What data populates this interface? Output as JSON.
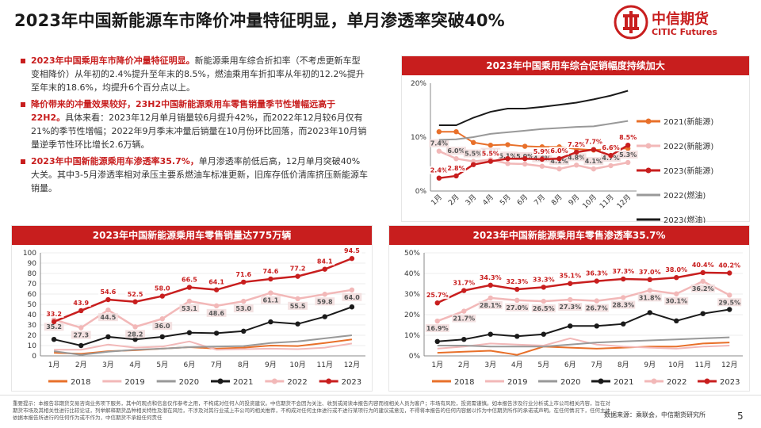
{
  "title": "2023年中国新能源车市降价冲量特征明显，单月渗透率突破40%",
  "logo": {
    "cn": "中信期货",
    "en": "CITIC Futures"
  },
  "bullets": [
    {
      "hl": "2023年中国乘用车市降价冲量特征明显。",
      "text": "新能源乘用车综合折扣率（不考虑更新车型变相降价）从年初的2.4%提升至年末的8.5%，燃油乘用车折扣率从年初的12.2%提升至年末的18.6%，均提升6个百分点以上。"
    },
    {
      "hl": "降价带来的冲量效果较好，23H2中国新能源乘用车零售销量季节性增幅远高于22H2。",
      "text": "具体来看：2023年12月单月销量较6月提升42%，而2022年12月较6月仅有21%的季节性增幅；2022年9月季末冲量后销量在10月份环比回落，而2023年10月销量逆季节性环比增长2.6万辆。"
    },
    {
      "hl": "2023年中国新能源乘用车渗透率35.7%，",
      "text": "单月渗透率前低后高，12月单月突破40%大关。其中3-5月渗透率相对承压主要系燃油车标准更新，旧库存低价清库挤压新能源车销量。"
    }
  ],
  "footer": {
    "disclaimer": "重要提示：本报告非期货交易咨询业务项下服务，其中的观点和信息仅作参考之用，不构成对任何人的投资建议。中信期货不会因为关注、收到或阅读本报告内容而视相关人员为客户；市场有风险，投资需谨慎。如本报告涉及行业分析或上市公司相关内容，旨在对期货市场及其相关性进行比较论证，列举解释期货品种相关特性及潜在风险，不涉及对其行业或上市公司的相关推荐，不构成对任何主体进行或不进行某项行为的建议或意见，不得将本报告的任何内容据以作为中信期货所作的承诺或声明。在任何情况下，任何主体依据本报告所进行的任何作为或不作为，中信期货不承担任何责任",
    "source": "数据来源：乘联会，中信期货研究所",
    "page": "5"
  },
  "colors": {
    "red": "#c81e1e",
    "orange": "#e8702a",
    "pink": "#f2b8b8",
    "gray": "#999999",
    "black": "#1a1a1a",
    "navy": "#3b5a8c"
  },
  "chart_data": [
    {
      "type": "line",
      "title": "2023年中国乘用车综合促销幅度持续加大",
      "categories": [
        "1月",
        "2月",
        "3月",
        "4月",
        "5月",
        "6月",
        "7月",
        "8月",
        "9月",
        "10月",
        "11月",
        "12月"
      ],
      "ylim": [
        0,
        20
      ],
      "yticks": [
        "0%",
        "10%",
        "20%"
      ],
      "series": [
        {
          "name": "2021(新能源)",
          "color": "#e8702a",
          "values": [
            11.0,
            11.0,
            9.0,
            8.5,
            8.6,
            8.3,
            8.2,
            8.2,
            7.8,
            7.6,
            7.8,
            7.9
          ]
        },
        {
          "name": "2022(新能源)",
          "color": "#f2b8b8",
          "values": [
            7.4,
            6.0,
            5.5,
            5.8,
            5.1,
            5.0,
            4.6,
            4.1,
            4.8,
            4.1,
            4.7,
            5.3
          ],
          "labels": [
            "7.4%",
            "6.0%",
            "5.5%",
            "5.8%",
            "5.1%",
            "5.0%",
            "4.6%",
            "4.1%",
            "4.8%",
            "4.1%",
            "4.7%",
            "5.3%"
          ]
        },
        {
          "name": "2023(新能源)",
          "color": "#c81e1e",
          "values": [
            2.4,
            2.8,
            4.9,
            5.5,
            6.0,
            6.0,
            5.9,
            6.0,
            7.2,
            7.7,
            6.6,
            8.5
          ],
          "labels": [
            "2.4%",
            "2.8%",
            "",
            "5.5%",
            "",
            "",
            "5.9%",
            "6.0%",
            "7.2%",
            "7.7%",
            "6.6%",
            "8.5%"
          ]
        },
        {
          "name": "2022(燃油)",
          "color": "#999999",
          "values": [
            9.5,
            9.6,
            10.0,
            10.6,
            10.9,
            11.2,
            11.5,
            11.7,
            11.9,
            12.0,
            12.5,
            13.0
          ]
        },
        {
          "name": "2023(燃油)",
          "color": "#1a1a1a",
          "values": [
            12.2,
            12.2,
            13.6,
            14.7,
            15.3,
            15.3,
            15.6,
            16.0,
            16.4,
            17.0,
            17.7,
            18.6
          ]
        }
      ]
    },
    {
      "type": "line",
      "title": "2023年中国新能源乘用车零售销量达775万辆",
      "categories": [
        "1月",
        "2月",
        "3月",
        "4月",
        "5月",
        "6月",
        "7月",
        "8月",
        "9月",
        "10月",
        "11月",
        "12月"
      ],
      "ylim": [
        0,
        100
      ],
      "yticks": [
        "0",
        "10",
        "20",
        "30",
        "40",
        "50",
        "60",
        "70",
        "80",
        "90",
        "100"
      ],
      "series": [
        {
          "name": "2018",
          "color": "#e8702a",
          "values": [
            3.0,
            2.0,
            4.5,
            5.5,
            7.0,
            8.5,
            7.0,
            8.0,
            10.0,
            9.5,
            12.5,
            16.0
          ]
        },
        {
          "name": "2019",
          "color": "#f2b8b8",
          "values": [
            6.0,
            6.0,
            11.0,
            8.0,
            9.0,
            14.0,
            6.0,
            6.5,
            7.0,
            6.5,
            8.0,
            12.0
          ]
        },
        {
          "name": "2020",
          "color": "#999999",
          "values": [
            4.5,
            1.0,
            4.0,
            6.0,
            7.0,
            8.5,
            9.0,
            9.5,
            12.5,
            14.0,
            17.0,
            20.0
          ]
        },
        {
          "name": "2021",
          "color": "#1a1a1a",
          "values": [
            16.0,
            10.0,
            18.5,
            16.0,
            18.5,
            22.5,
            22.0,
            24.0,
            33.0,
            31.0,
            38.0,
            47.5
          ]
        },
        {
          "name": "2022",
          "color": "#f2b8b8",
          "values": [
            35.2,
            27.3,
            44.5,
            28.2,
            36.0,
            53.1,
            48.6,
            53.0,
            61.1,
            55.5,
            59.8,
            64.0
          ],
          "labels": [
            "35.2",
            "27.3",
            "44.5",
            "28.2",
            "36.0",
            "53.1",
            "48.6",
            "53.0",
            "61.1",
            "55.5",
            "59.8",
            "64.0"
          ]
        },
        {
          "name": "2023",
          "color": "#c81e1e",
          "values": [
            33.2,
            43.9,
            54.6,
            52.5,
            58.0,
            66.5,
            64.1,
            71.6,
            74.6,
            77.2,
            84.1,
            94.5
          ],
          "labels": [
            "33.2",
            "43.9",
            "54.6",
            "52.5",
            "58.0",
            "66.5",
            "64.1",
            "71.6",
            "74.6",
            "77.2",
            "84.1",
            "94.5"
          ]
        }
      ]
    },
    {
      "type": "line",
      "title": "2023年中国新能源乘用车零售渗透率35.7%",
      "categories": [
        "1月",
        "2月",
        "3月",
        "4月",
        "5月",
        "6月",
        "7月",
        "8月",
        "9月",
        "10月",
        "11月",
        "12月"
      ],
      "ylim": [
        0,
        50
      ],
      "yticks": [
        "0%",
        "10%",
        "20%",
        "30%",
        "40%",
        "50%"
      ],
      "series": [
        {
          "name": "2018",
          "color": "#e8702a",
          "values": [
            1.5,
            2.0,
            2.5,
            0.5,
            4.5,
            4.0,
            3.5,
            4.0,
            4.5,
            4.5,
            6.0,
            6.5
          ]
        },
        {
          "name": "2019",
          "color": "#f2b8b8",
          "values": [
            3.5,
            4.5,
            6.0,
            5.5,
            5.0,
            8.5,
            5.5,
            4.5,
            4.0,
            3.5,
            4.5,
            5.0
          ]
        },
        {
          "name": "2020",
          "color": "#999999",
          "values": [
            5.0,
            5.0,
            4.5,
            4.5,
            4.5,
            5.5,
            6.5,
            7.0,
            7.5,
            8.0,
            8.5,
            9.0
          ]
        },
        {
          "name": "2021",
          "color": "#1a1a1a",
          "values": [
            7.0,
            8.0,
            10.5,
            9.5,
            10.5,
            14.5,
            14.5,
            15.5,
            21.0,
            17.0,
            20.5,
            22.5
          ]
        },
        {
          "name": "2022",
          "color": "#f2b8b8",
          "values": [
            16.9,
            21.7,
            28.1,
            27.0,
            26.5,
            27.3,
            26.7,
            28.3,
            31.8,
            30.1,
            36.2,
            29.5
          ],
          "labels": [
            "16.9%",
            "21.7%",
            "28.1%",
            "27.0%",
            "26.5%",
            "27.3%",
            "26.7%",
            "28.3%",
            "31.8%",
            "30.1%",
            "36.2%",
            "29.5%"
          ]
        },
        {
          "name": "2023",
          "color": "#c81e1e",
          "values": [
            25.7,
            31.7,
            34.3,
            32.3,
            33.3,
            35.1,
            36.3,
            37.3,
            37.0,
            38.0,
            40.4,
            40.2
          ],
          "labels": [
            "25.7%",
            "31.7%",
            "34.3%",
            "32.3%",
            "33.3%",
            "35.1%",
            "36.3%",
            "37.3%",
            "37.0%",
            "38.0%",
            "40.4%",
            "40.2%"
          ]
        }
      ]
    }
  ]
}
